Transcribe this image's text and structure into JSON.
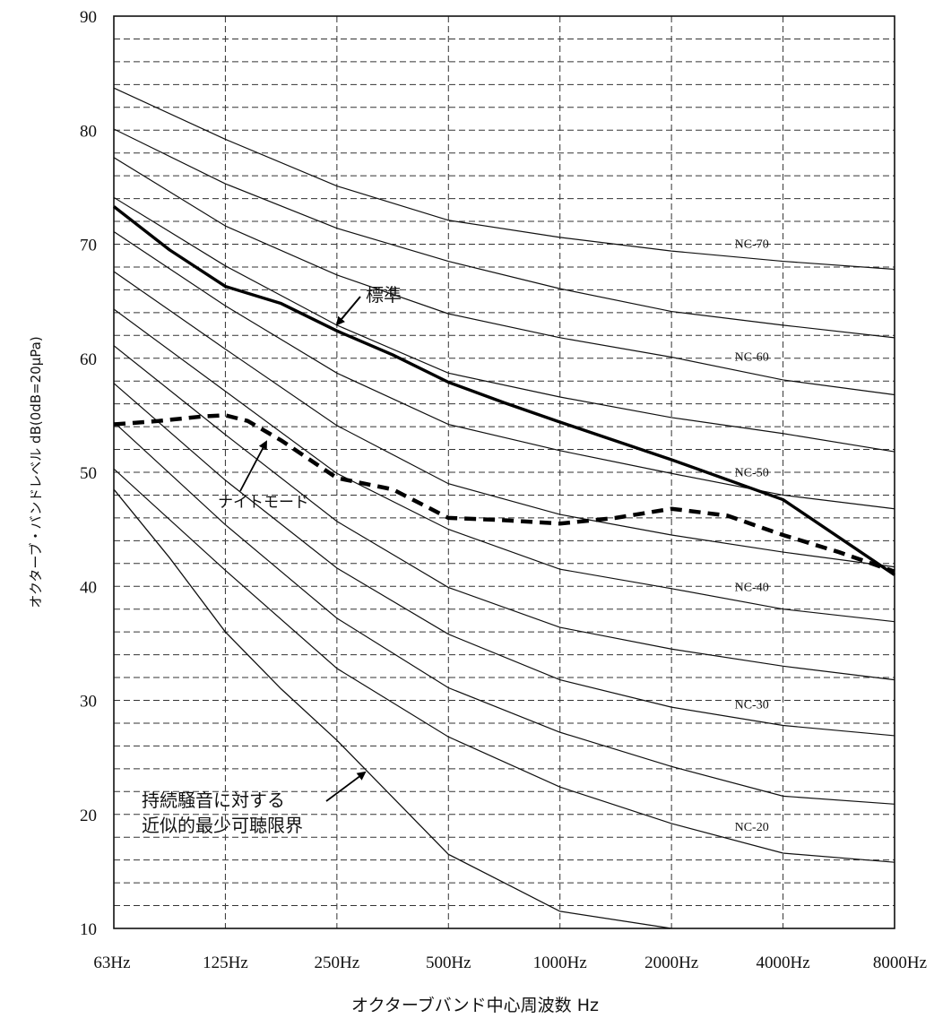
{
  "chart_data": {
    "type": "line",
    "xlabel": "オクターブバンド中心周波数 Hz",
    "ylabel": "オクターブ・バンドレベル dB(0dB=20μPa)",
    "x_categories": [
      "63Hz",
      "125Hz",
      "250Hz",
      "500Hz",
      "1000Hz",
      "2000Hz",
      "4000Hz",
      "8000Hz"
    ],
    "y_ticks": [
      "10",
      "20",
      "30",
      "40",
      "50",
      "60",
      "70",
      "80",
      "90"
    ],
    "ylim": [
      10,
      90
    ],
    "grid": {
      "vertical": "dashed",
      "horizontal": "dashed",
      "horizontal_step": 2
    },
    "nc_curves": [
      {
        "name": "NC-70",
        "values": [
          83.7,
          79.2,
          75.1,
          72.1,
          70.6,
          69.4,
          68.5,
          67.8
        ]
      },
      {
        "name": "",
        "values": [
          80.1,
          75.3,
          71.4,
          68.5,
          66.1,
          64.1,
          62.9,
          61.8
        ]
      },
      {
        "name": "NC-60",
        "values": [
          77.6,
          71.6,
          67.3,
          63.9,
          61.8,
          60.1,
          58.1,
          56.8
        ]
      },
      {
        "name": "",
        "values": [
          74.1,
          68.1,
          62.9,
          58.7,
          56.6,
          54.8,
          53.4,
          51.8
        ]
      },
      {
        "name": "NC-50",
        "values": [
          71.1,
          64.6,
          58.7,
          54.2,
          51.9,
          49.9,
          48.0,
          46.8
        ]
      },
      {
        "name": "",
        "values": [
          67.6,
          60.8,
          54.1,
          49.0,
          46.3,
          44.5,
          43.0,
          41.7
        ]
      },
      {
        "name": "NC-40",
        "values": [
          64.3,
          57.1,
          49.9,
          45.0,
          41.5,
          39.8,
          38.0,
          36.9
        ]
      },
      {
        "name": "",
        "values": [
          61.1,
          53.3,
          45.7,
          39.9,
          36.4,
          34.5,
          33.0,
          31.8
        ]
      },
      {
        "name": "NC-30",
        "values": [
          57.8,
          49.3,
          41.6,
          35.8,
          31.8,
          29.4,
          27.8,
          26.9
        ]
      },
      {
        "name": "",
        "values": [
          54.4,
          45.4,
          37.2,
          31.1,
          27.2,
          24.2,
          21.6,
          20.9
        ]
      },
      {
        "name": "NC-20",
        "values": [
          50.3,
          41.4,
          32.8,
          26.8,
          22.4,
          19.2,
          16.6,
          15.8
        ]
      }
    ],
    "hearing_threshold": {
      "name": "持続騒音に対する近似的最少可聴限界",
      "x": [
        0,
        0.5,
        1,
        1.5,
        2,
        2.5,
        3,
        3.5,
        4,
        5,
        6
      ],
      "y": [
        48.5,
        42.5,
        36,
        31,
        26.5,
        21.5,
        16.5,
        14,
        11.5,
        10,
        8
      ]
    },
    "standard": {
      "name": "標準",
      "x": [
        0,
        0.5,
        1,
        1.5,
        2,
        2.5,
        3,
        3.5,
        4,
        5,
        6,
        7
      ],
      "y": [
        73.3,
        69.5,
        66.3,
        64.8,
        62.4,
        60.3,
        57.9,
        56.1,
        54.4,
        51.1,
        47.6,
        41.0
      ]
    },
    "night_mode": {
      "name": "ナイトモード",
      "x": [
        0,
        0.4,
        0.8,
        1,
        1.2,
        1.5,
        2,
        2.5,
        3,
        3.5,
        4,
        4.5,
        5,
        5.5,
        6,
        6.5,
        7
      ],
      "y": [
        54.2,
        54.5,
        54.9,
        55.0,
        54.5,
        52.8,
        49.5,
        48.5,
        46.0,
        45.8,
        45.5,
        46.0,
        46.8,
        46.2,
        44.5,
        43.0,
        41.3
      ]
    }
  }
}
